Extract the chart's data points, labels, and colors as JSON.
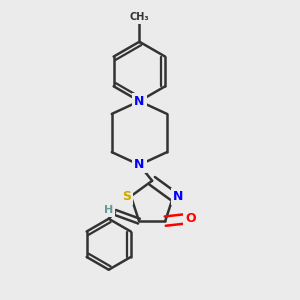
{
  "bg_color": "#ebebeb",
  "bond_color": "#333333",
  "bond_width": 1.8,
  "atom_colors": {
    "N": "#0000ff",
    "O": "#ff0000",
    "S": "#ccaa00",
    "H": "#669999",
    "C": "#333333"
  },
  "fig_width": 3.0,
  "fig_height": 3.0,
  "dpi": 100
}
